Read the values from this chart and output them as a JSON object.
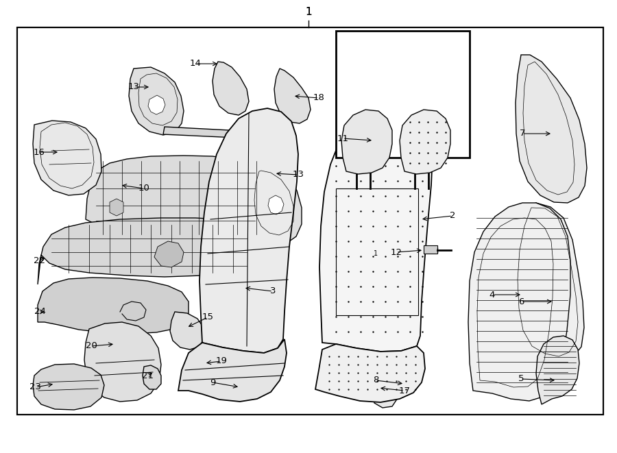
{
  "bg_color": "#ffffff",
  "border_color": "#000000",
  "fig_width": 9.0,
  "fig_height": 6.61,
  "dpi": 100
}
